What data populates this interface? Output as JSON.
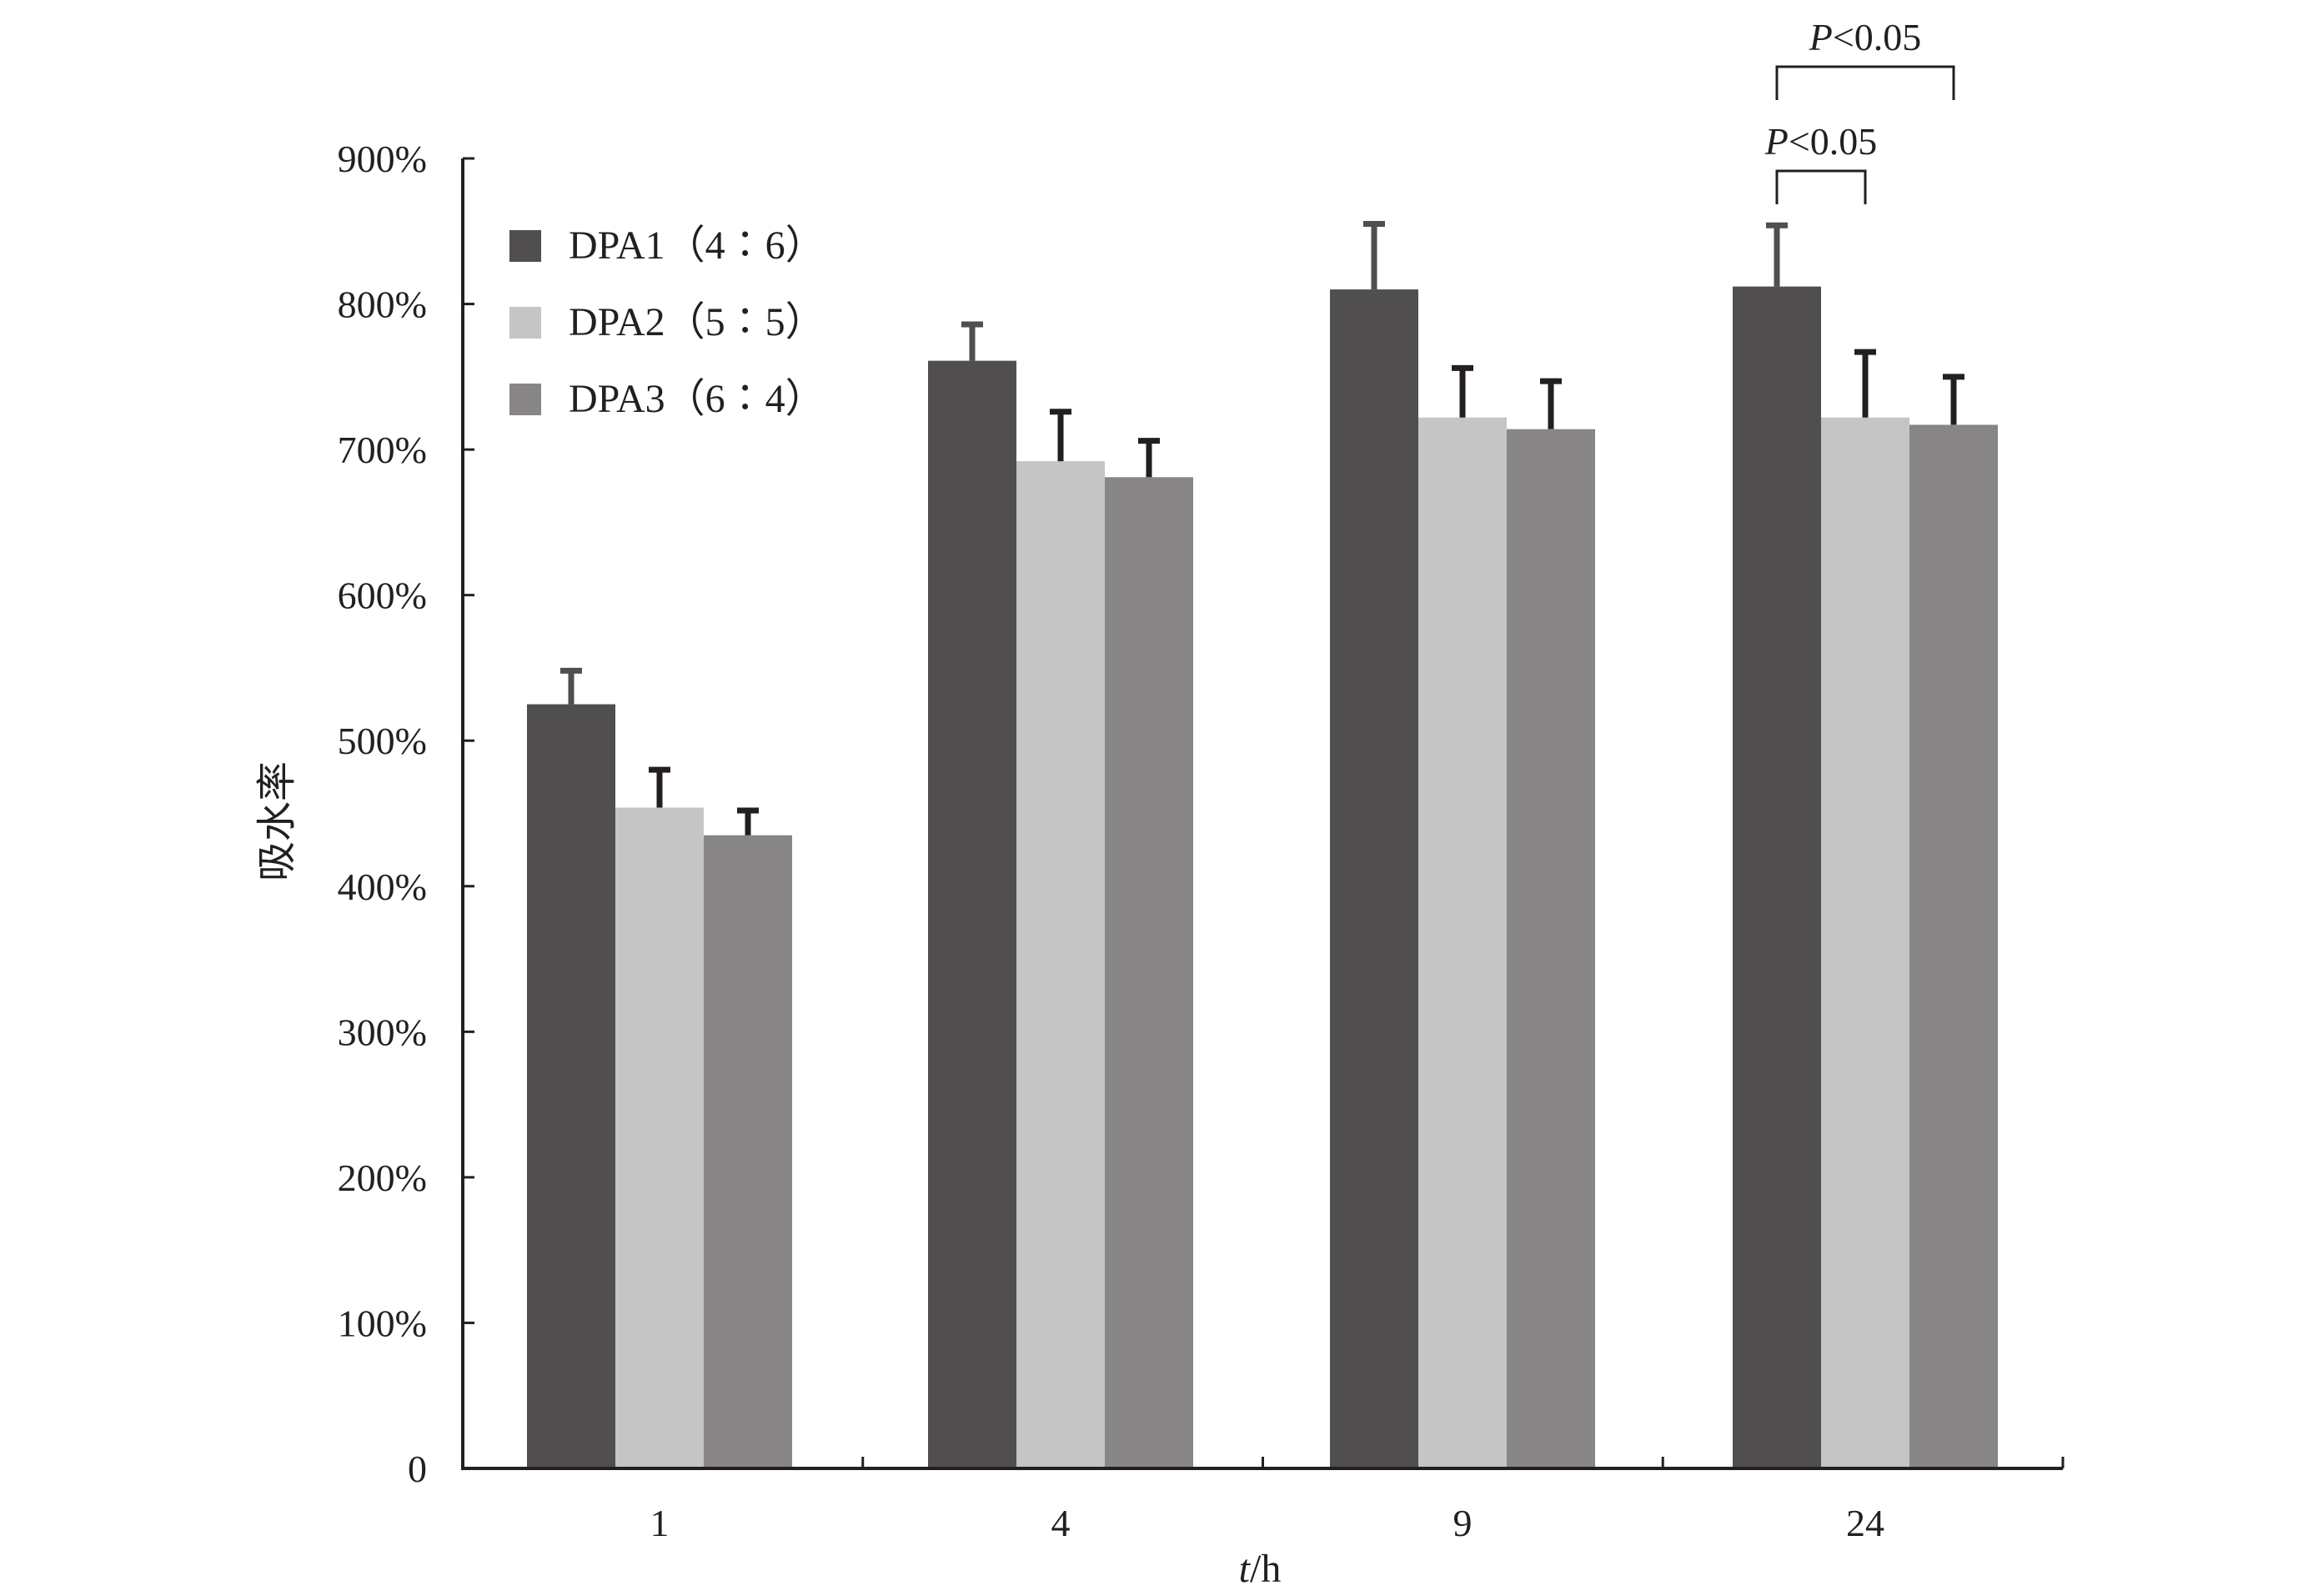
{
  "chart_data": {
    "type": "bar",
    "title": "",
    "xlabel": "t/h",
    "xlabel_parts": {
      "var": "t",
      "unit": "/h"
    },
    "ylabel": "吸水率",
    "ylim": [
      0,
      900
    ],
    "yticks": [
      "0",
      "100%",
      "200%",
      "300%",
      "400%",
      "500%",
      "600%",
      "700%",
      "800%",
      "900%"
    ],
    "ytick_values": [
      0,
      100,
      200,
      300,
      400,
      500,
      600,
      700,
      800,
      900
    ],
    "categories": [
      "1",
      "4",
      "9",
      "24"
    ],
    "grid": false,
    "legend_position": "top-left",
    "series": [
      {
        "name": "DPA1（4∶6）",
        "color": "#504e4f",
        "errcolor": "#504e4f",
        "values": [
          525,
          761,
          810,
          812
        ],
        "errors": [
          23,
          25,
          45,
          42
        ]
      },
      {
        "name": "DPA2（5∶5）",
        "color": "#c5c5c5",
        "errcolor": "#231f20",
        "values": [
          454,
          692,
          722,
          722
        ],
        "errors": [
          26,
          34,
          34,
          45
        ]
      },
      {
        "name": "DPA3（6∶4）",
        "color": "#878586",
        "errcolor": "#231f20",
        "values": [
          435,
          681,
          714,
          717
        ],
        "errors": [
          17,
          25,
          33,
          33
        ]
      }
    ],
    "annotations": [
      {
        "category": "24",
        "from_series": 0,
        "to_series": 1,
        "text_var": "P",
        "text_rest": "<0.05"
      },
      {
        "category": "24",
        "from_series": 0,
        "to_series": 2,
        "text_var": "P",
        "text_rest": "<0.05"
      }
    ]
  }
}
